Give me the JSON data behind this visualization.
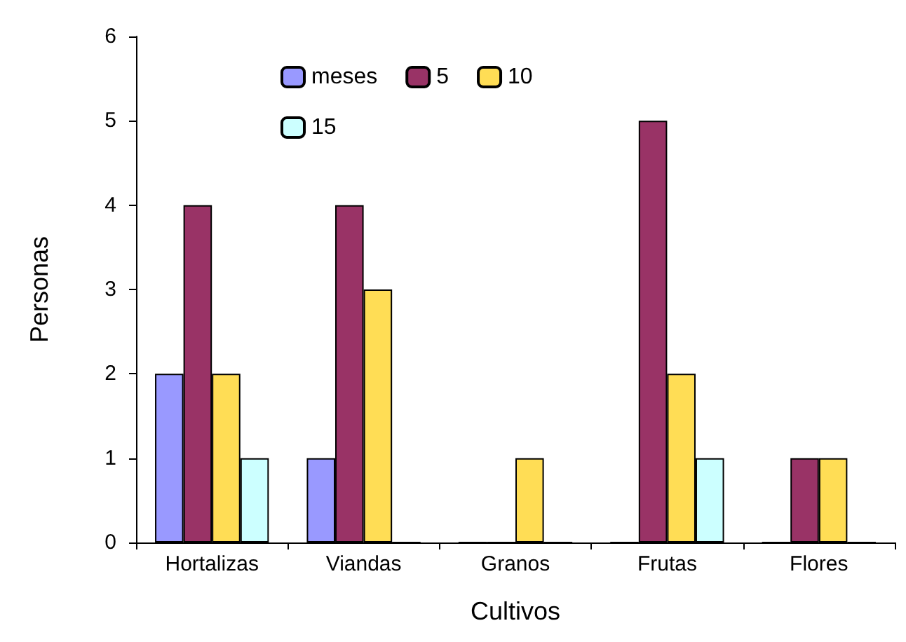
{
  "chart_data": {
    "type": "bar",
    "xlabel": "Cultivos",
    "ylabel": "Personas",
    "categories": [
      "Hortalizas",
      "Viandas",
      "Granos",
      "Frutas",
      "Flores"
    ],
    "series": [
      {
        "name": "meses",
        "color": "#9999ff",
        "values": [
          2,
          1,
          0,
          0,
          0
        ]
      },
      {
        "name": "5",
        "color": "#993366",
        "values": [
          4,
          4,
          0,
          5,
          1
        ]
      },
      {
        "name": "10",
        "color": "#ffdd55",
        "values": [
          2,
          3,
          1,
          2,
          1
        ]
      },
      {
        "name": "15",
        "color": "#ccffff",
        "values": [
          1,
          0,
          0,
          1,
          0
        ]
      }
    ],
    "ylim": [
      0,
      6
    ],
    "yticks": [
      0,
      1,
      2,
      3,
      4,
      5,
      6
    ],
    "grid": false,
    "legend": "top"
  }
}
